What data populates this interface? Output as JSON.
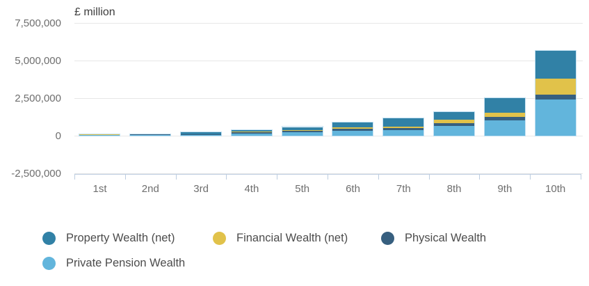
{
  "chart_data": {
    "type": "bar",
    "stacked": true,
    "title": "£ million",
    "xlabel": "",
    "ylabel": "£ million",
    "ylim": [
      -2500000,
      7500000
    ],
    "grid": true,
    "categories": [
      "1st",
      "2nd",
      "3rd",
      "4th",
      "5th",
      "6th",
      "7th",
      "8th",
      "9th",
      "10th"
    ],
    "y_ticks": [
      {
        "label": "7,500,000",
        "value": 7500000
      },
      {
        "label": "5,000,000",
        "value": 5000000
      },
      {
        "label": "2,500,000",
        "value": 2500000
      },
      {
        "label": "0",
        "value": 0
      },
      {
        "label": "-2,500,000",
        "value": -2500000
      }
    ],
    "series": [
      {
        "name": "Private Pension Wealth",
        "color": "#62b5dc",
        "values": [
          50000,
          60000,
          50000,
          160000,
          230000,
          330000,
          380000,
          650000,
          1000000,
          2400000
        ]
      },
      {
        "name": "Physical Wealth",
        "color": "#375f7f",
        "values": [
          15000,
          25000,
          30000,
          60000,
          100000,
          120000,
          130000,
          180000,
          230000,
          310000
        ]
      },
      {
        "name": "Financial Wealth (net)",
        "color": "#e1c24a",
        "values": [
          10000,
          10000,
          20000,
          60000,
          60000,
          90000,
          110000,
          230000,
          320000,
          1070000
        ]
      },
      {
        "name": "Property Wealth (net)",
        "color": "#3181a6",
        "values": [
          15000,
          20000,
          130000,
          90000,
          190000,
          340000,
          540000,
          515000,
          930000,
          1870000
        ]
      }
    ],
    "legend": {
      "position": "bottom-left",
      "items": [
        {
          "label": "Property Wealth (net)",
          "color": "#3181a6"
        },
        {
          "label": "Financial Wealth (net)",
          "color": "#e1c24a"
        },
        {
          "label": "Physical Wealth",
          "color": "#375f7f"
        },
        {
          "label": "Private Pension Wealth",
          "color": "#62b5dc"
        }
      ]
    }
  }
}
